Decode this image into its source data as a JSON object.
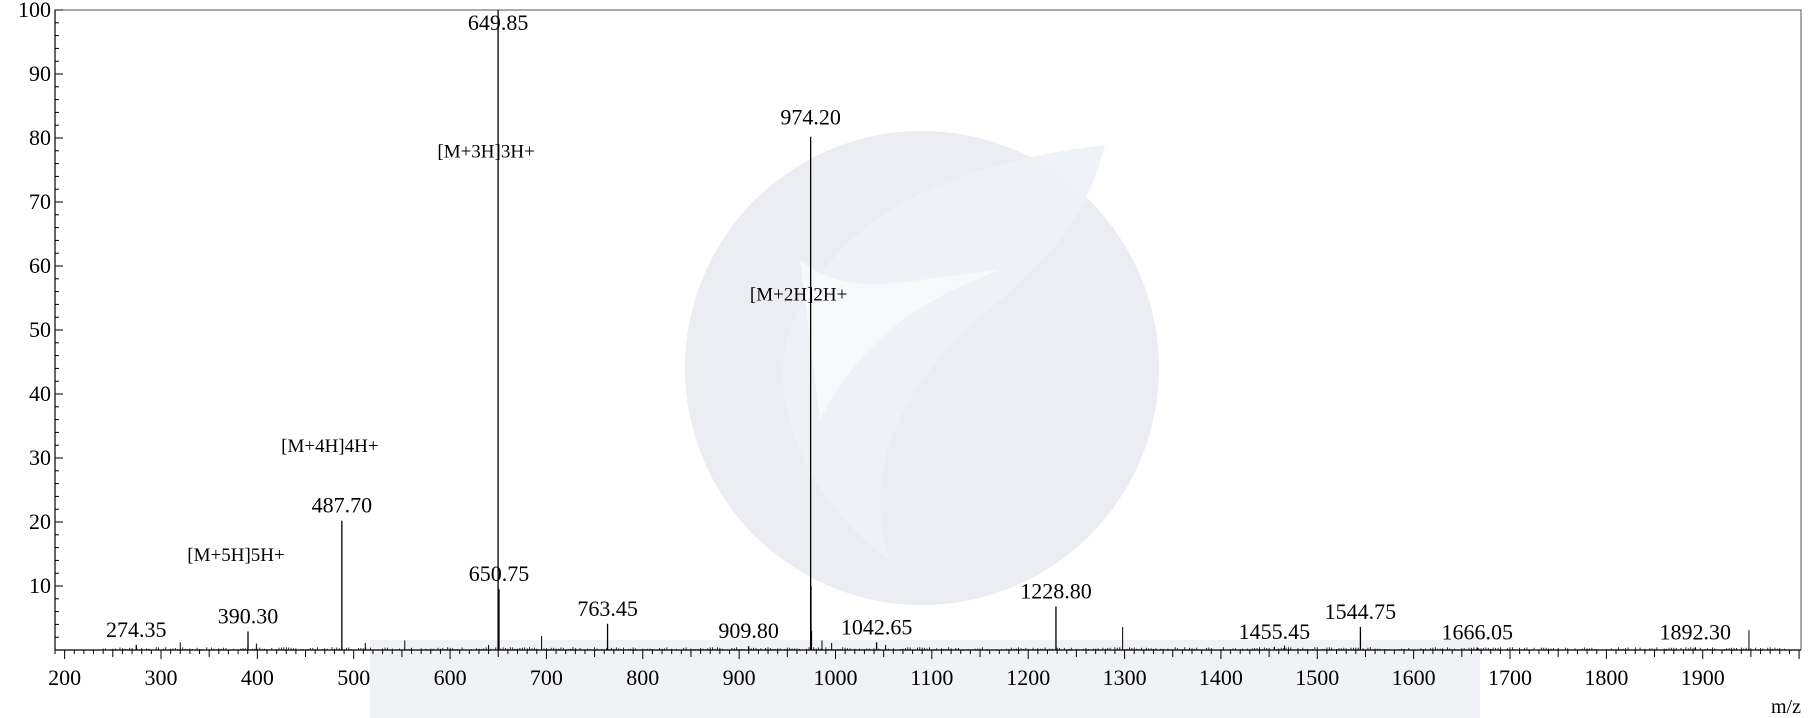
{
  "chart_data": {
    "type": "bar",
    "xlabel": "m/z",
    "ylabel": "",
    "xlim": [
      190,
      2002
    ],
    "ylim": [
      0,
      100
    ],
    "x_ticks": [
      200,
      300,
      400,
      500,
      600,
      700,
      800,
      900,
      1000,
      1100,
      1200,
      1300,
      1400,
      1500,
      1600,
      1700,
      1800,
      1900
    ],
    "y_ticks": [
      10,
      20,
      30,
      40,
      50,
      60,
      70,
      80,
      90,
      100
    ],
    "grid": false,
    "peaks": [
      {
        "mz": 649.85,
        "intensity": 100,
        "label": "649.85"
      },
      {
        "mz": 974.2,
        "intensity": 80.2,
        "label": "974.20"
      },
      {
        "mz": 487.7,
        "intensity": 20.2,
        "label": "487.70"
      },
      {
        "mz": 650.75,
        "intensity": 9.5,
        "label": "650.75"
      },
      {
        "mz": 763.45,
        "intensity": 4.1,
        "label": "763.45"
      },
      {
        "mz": 390.3,
        "intensity": 2.9,
        "label": "390.30"
      },
      {
        "mz": 274.35,
        "intensity": 0.8,
        "label": "274.35"
      },
      {
        "mz": 909.8,
        "intensity": 0.6,
        "label": "909.80"
      },
      {
        "mz": 1042.65,
        "intensity": 1.2,
        "label": "1042.65"
      },
      {
        "mz": 1228.8,
        "intensity": 6.8,
        "label": "1228.80"
      },
      {
        "mz": 1455.45,
        "intensity": 0.5,
        "label": "1455.45"
      },
      {
        "mz": 1544.75,
        "intensity": 3.6,
        "label": "1544.75"
      },
      {
        "mz": 1666.05,
        "intensity": 0.4,
        "label": "1666.05"
      },
      {
        "mz": 1892.3,
        "intensity": 0.4,
        "label": "1892.30"
      }
    ],
    "minor_peaks": [
      {
        "mz": 650.3,
        "intensity": 8.5
      },
      {
        "mz": 974.7,
        "intensity": 10
      },
      {
        "mz": 975.2,
        "intensity": 3
      },
      {
        "mz": 695,
        "intensity": 2.2
      },
      {
        "mz": 1298,
        "intensity": 3.6
      },
      {
        "mz": 1948,
        "intensity": 3.1
      },
      {
        "mz": 320,
        "intensity": 1.2
      },
      {
        "mz": 399,
        "intensity": 1
      },
      {
        "mz": 512,
        "intensity": 1.1
      },
      {
        "mz": 553,
        "intensity": 1.5
      },
      {
        "mz": 640,
        "intensity": 0.8
      },
      {
        "mz": 986,
        "intensity": 1.5
      },
      {
        "mz": 996,
        "intensity": 1.1
      },
      {
        "mz": 1052,
        "intensity": 0.8
      },
      {
        "mz": 1466,
        "intensity": 0.7
      }
    ],
    "annotations": [
      {
        "text": "[M+3H]3H+",
        "mz": 649.85,
        "intensity": 76
      },
      {
        "text": "[M+2H]2H+",
        "mz": 974.2,
        "intensity": 53.7
      },
      {
        "text": "[M+4H]4H+",
        "mz": 487.7,
        "intensity": 30
      },
      {
        "text": "[M+5H]5H+",
        "mz": 390.3,
        "intensity": 13
      }
    ],
    "watermark": {
      "colors": [
        "#e4e7ee",
        "#eef1f5"
      ]
    }
  },
  "colors": {
    "axis": "#000000",
    "peak": "#000000"
  }
}
